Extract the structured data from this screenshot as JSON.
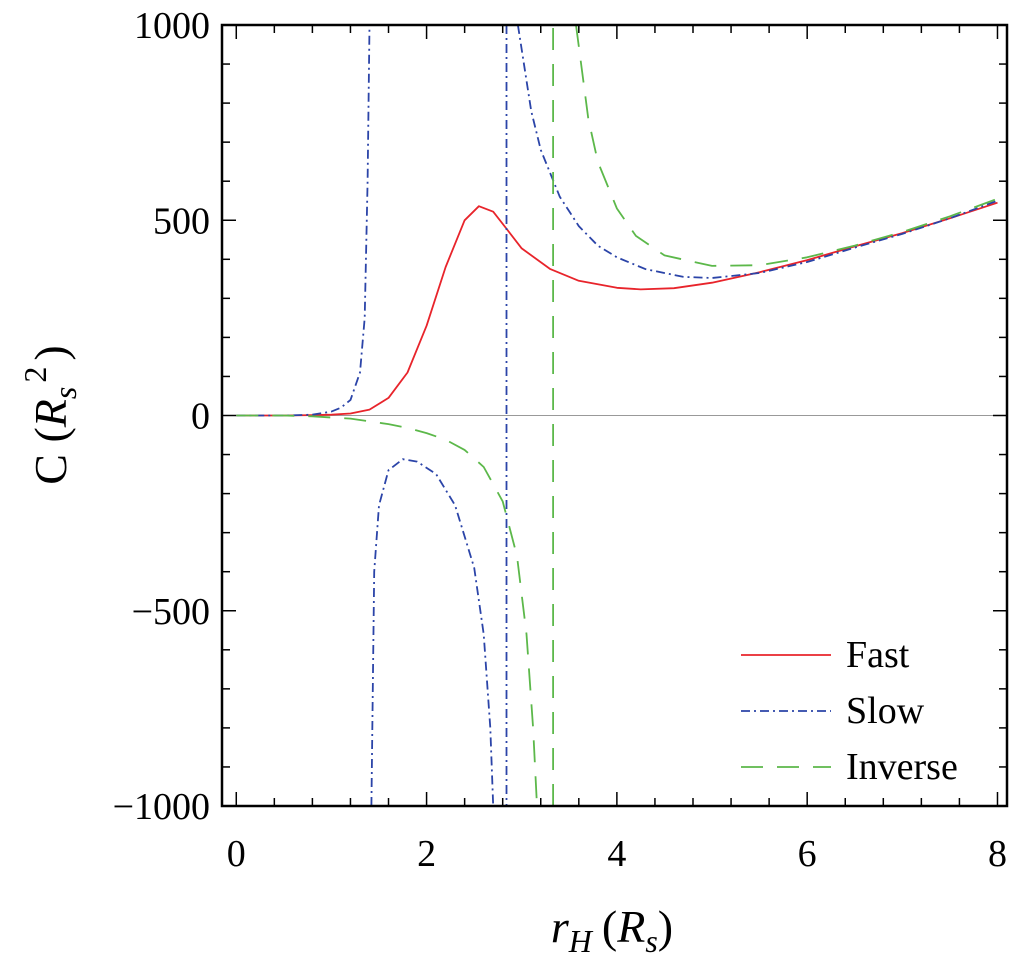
{
  "chart_data": {
    "type": "line",
    "title": "",
    "xlabel": {
      "main": "r",
      "sub": "H",
      "unit_open": "(",
      "unit_main": "R",
      "unit_sub": "s",
      "unit_close": ")"
    },
    "ylabel": {
      "main": "C (",
      "unit_main": "R",
      "unit_sub": "s",
      "unit_sup": "2",
      "close": ")"
    },
    "xlim": [
      -0.15,
      8.1
    ],
    "ylim": [
      -1000,
      1000
    ],
    "xticks": [
      0,
      2,
      4,
      6,
      8
    ],
    "xtick_labels": [
      "0",
      "2",
      "4",
      "6",
      "8"
    ],
    "yticks": [
      -1000,
      -500,
      0,
      500,
      1000
    ],
    "ytick_labels": [
      "−1000",
      "−500",
      "0",
      "500",
      "1000"
    ],
    "legend": {
      "position": "bottom-right",
      "entries": [
        {
          "label": "Fast",
          "color": "#e8242b",
          "dash": "solid"
        },
        {
          "label": "Slow",
          "color": "#2b44a8",
          "dash": "dashdot"
        },
        {
          "label": "Inverse",
          "color": "#5cb84a",
          "dash": "dashed"
        }
      ]
    },
    "series": [
      {
        "name": "Fast",
        "color": "#e8242b",
        "segments": [
          [
            [
              0.0,
              0
            ],
            [
              0.5,
              0
            ],
            [
              0.8,
              1
            ],
            [
              1.0,
              2
            ],
            [
              1.2,
              5
            ],
            [
              1.4,
              15
            ],
            [
              1.6,
              45
            ],
            [
              1.8,
              110
            ],
            [
              2.0,
              230
            ],
            [
              2.2,
              380
            ],
            [
              2.4,
              500
            ],
            [
              2.55,
              536
            ],
            [
              2.7,
              522
            ],
            [
              2.85,
              475
            ],
            [
              3.0,
              428
            ],
            [
              3.3,
              375
            ],
            [
              3.6,
              345
            ],
            [
              4.0,
              327
            ],
            [
              4.25,
              323
            ],
            [
              4.6,
              326
            ],
            [
              5.0,
              340
            ],
            [
              5.5,
              367
            ],
            [
              6.0,
              398
            ],
            [
              6.5,
              433
            ],
            [
              7.0,
              467
            ],
            [
              7.5,
              505
            ],
            [
              8.0,
              545
            ]
          ]
        ]
      },
      {
        "name": "Slow",
        "color": "#2b44a8",
        "segments": [
          [
            [
              0.0,
              0
            ],
            [
              0.5,
              0
            ],
            [
              0.8,
              2
            ],
            [
              1.0,
              10
            ],
            [
              1.1,
              20
            ],
            [
              1.2,
              40
            ],
            [
              1.3,
              110
            ],
            [
              1.35,
              250
            ],
            [
              1.38,
              600
            ],
            [
              1.4,
              1000
            ]
          ],
          [
            [
              1.42,
              -1000
            ],
            [
              1.45,
              -400
            ],
            [
              1.5,
              -230
            ],
            [
              1.6,
              -140
            ],
            [
              1.75,
              -112
            ],
            [
              1.9,
              -118
            ],
            [
              2.1,
              -150
            ],
            [
              2.3,
              -230
            ],
            [
              2.5,
              -390
            ],
            [
              2.6,
              -560
            ],
            [
              2.67,
              -800
            ],
            [
              2.7,
              -1000
            ]
          ],
          [
            [
              2.84,
              1000
            ],
            [
              2.84,
              -1000
            ]
          ],
          [
            [
              2.96,
              1000
            ],
            [
              3.1,
              780
            ],
            [
              3.2,
              680
            ],
            [
              3.4,
              560
            ],
            [
              3.6,
              485
            ],
            [
              3.8,
              435
            ],
            [
              4.0,
              405
            ],
            [
              4.3,
              375
            ],
            [
              4.7,
              355
            ],
            [
              5.0,
              352
            ],
            [
              5.5,
              365
            ],
            [
              6.0,
              393
            ],
            [
              6.5,
              430
            ],
            [
              7.0,
              465
            ],
            [
              7.5,
              505
            ],
            [
              8.0,
              550
            ]
          ]
        ]
      },
      {
        "name": "Inverse",
        "color": "#5cb84a",
        "segments": [
          [
            [
              0.0,
              0
            ],
            [
              0.5,
              0
            ],
            [
              0.8,
              -2
            ],
            [
              1.0,
              -5
            ],
            [
              1.2,
              -8
            ],
            [
              1.4,
              -15
            ],
            [
              1.6,
              -22
            ],
            [
              1.8,
              -32
            ],
            [
              2.0,
              -45
            ],
            [
              2.2,
              -62
            ],
            [
              2.4,
              -88
            ],
            [
              2.6,
              -132
            ],
            [
              2.8,
              -220
            ],
            [
              2.95,
              -360
            ],
            [
              3.05,
              -560
            ],
            [
              3.12,
              -800
            ],
            [
              3.16,
              -1000
            ]
          ],
          [
            [
              3.33,
              -1000
            ],
            [
              3.33,
              1000
            ]
          ],
          [
            [
              3.57,
              1000
            ],
            [
              3.7,
              760
            ],
            [
              3.8,
              650
            ],
            [
              4.0,
              530
            ],
            [
              4.2,
              460
            ],
            [
              4.5,
              410
            ],
            [
              5.0,
              383
            ],
            [
              5.5,
              385
            ],
            [
              6.0,
              405
            ],
            [
              6.5,
              435
            ],
            [
              7.0,
              470
            ],
            [
              7.5,
              510
            ],
            [
              8.0,
              555
            ]
          ]
        ]
      }
    ]
  }
}
